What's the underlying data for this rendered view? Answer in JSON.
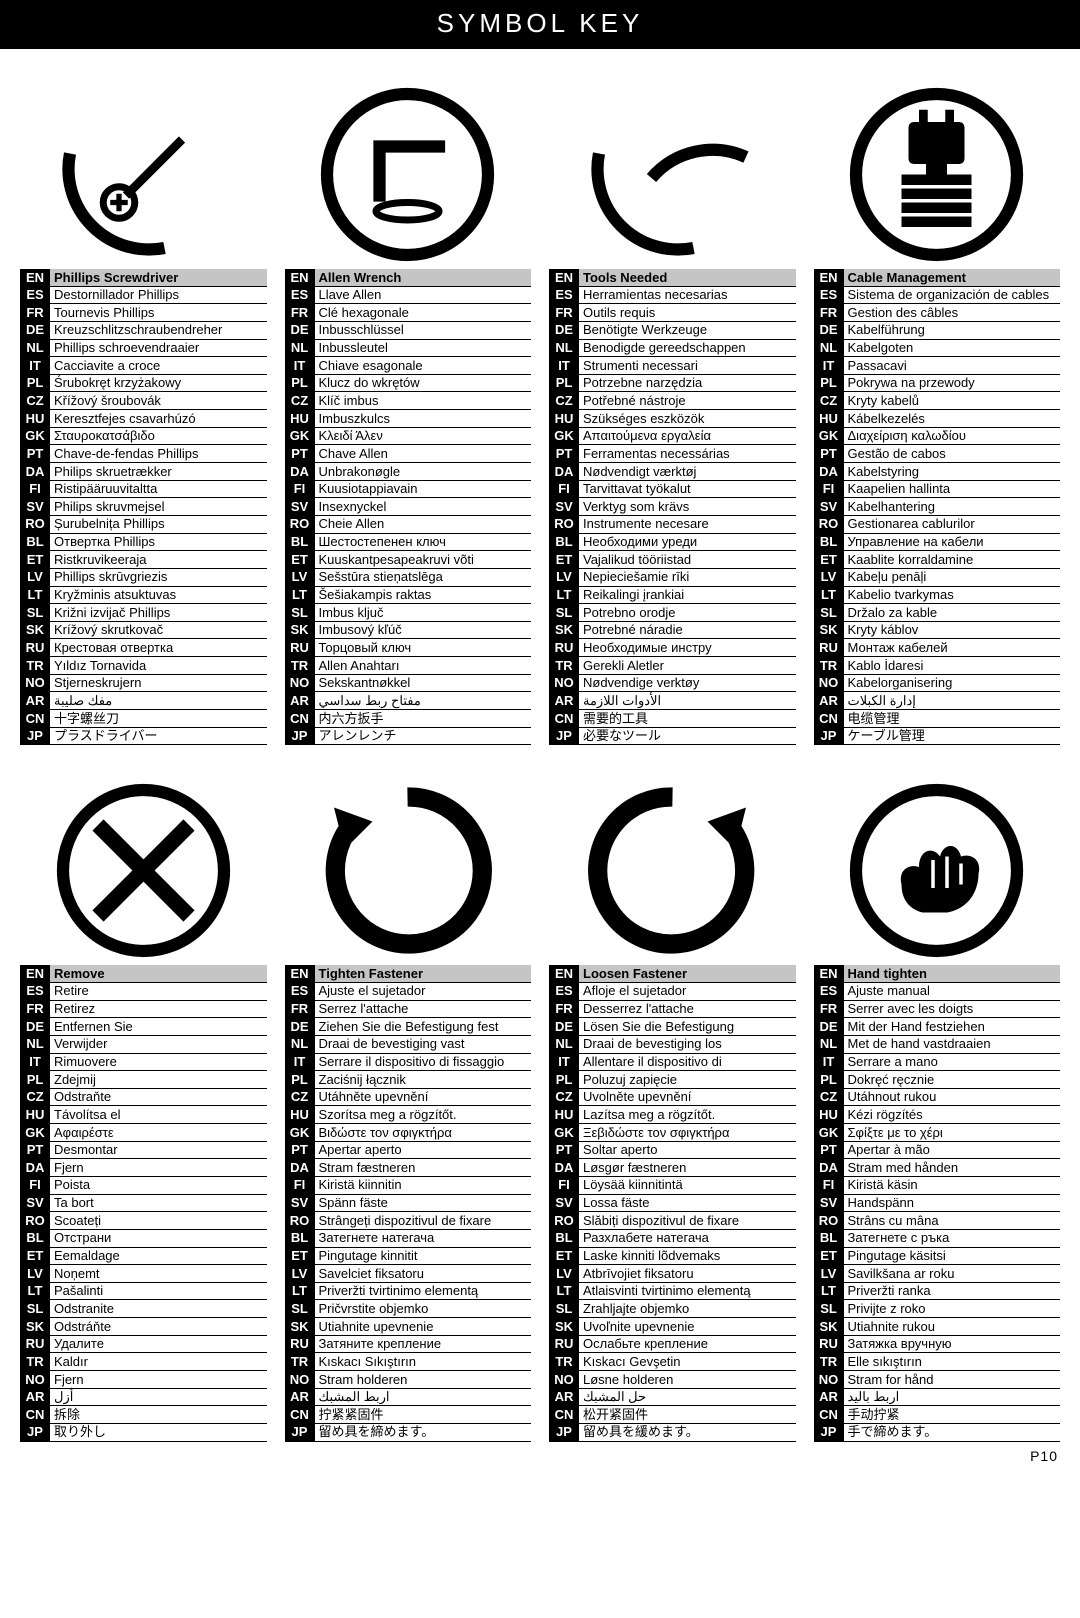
{
  "title": "SYMBOL KEY",
  "pagenum": "P10",
  "lang_codes": [
    "EN",
    "ES",
    "FR",
    "DE",
    "NL",
    "IT",
    "PL",
    "CZ",
    "HU",
    "GK",
    "PT",
    "DA",
    "FI",
    "SV",
    "RO",
    "BL",
    "ET",
    "LV",
    "LT",
    "SL",
    "SK",
    "RU",
    "TR",
    "NO",
    "AR",
    "CN",
    "JP"
  ],
  "row1": {
    "blocks": [
      {
        "icon": "phillips",
        "labels": [
          "Phillips Screwdriver",
          "Destornillador Phillips",
          "Tournevis Phillips",
          "Kreuzschlitzschraubendreher",
          "Phillips schroevendraaier",
          "Cacciavite a croce",
          "Śrubokręt krzyżakowy",
          "Křížový šroubovák",
          "Keresztfejes csavarhúzó",
          "Σταυροκατσάβιδο",
          "Chave-de-fendas Phillips",
          "Philips skruetrækker",
          "Ristipääruuvitaltta",
          "Philips skruvmejsel",
          "Șurubelnița Phillips",
          "Отвертка Phillips",
          "Ristkruvikeeraja",
          "Phillips skrūvgriezis",
          "Kryžminis atsuktuvas",
          "Križni izvijač Phillips",
          "Krížový skrutkovač",
          "Крестовая отвертка",
          "Yıldız Tornavida",
          "Stjerneskrujern",
          "مفك صليبة",
          "十字螺丝刀",
          "プラスドライバー"
        ]
      },
      {
        "icon": "allen",
        "labels": [
          "Allen Wrench",
          "Llave Allen",
          "Clé hexagonale",
          "Inbusschlüssel",
          "Inbussleutel",
          "Chiave esagonale",
          "Klucz do wkrętów",
          "Klíč imbus",
          "Imbuszkulcs",
          "Κλειδί Άλεν",
          "Chave Allen",
          "Unbrakonøgle",
          "Kuusiotappiavain",
          "Insexnyckel",
          "Cheie Allen",
          "Шестостепенен ключ",
          "Kuuskantpesapeakruvi võti",
          "Sešstūra stieņatslēga",
          "Šešiakampis raktas",
          "Imbus ključ",
          "Imbusový kľúč",
          "Торцовый ключ",
          "Allen Anahtarı",
          "Sekskantnøkkel",
          "مفتاح ربط سداسي",
          "内六方扳手",
          "アレンレンチ"
        ]
      },
      {
        "icon": "tools",
        "labels": [
          "Tools Needed",
          "Herramientas necesarias",
          "Outils requis",
          "Benötigte Werkzeuge",
          "Benodigde gereedschappen",
          "Strumenti necessari",
          "Potrzebne narzędzia",
          "Potřebné nástroje",
          "Szükséges eszközök",
          "Απαιτούμενα εργαλεία",
          "Ferramentas necessárias",
          "Nødvendigt værktøj",
          "Tarvittavat työkalut",
          "Verktyg som krävs",
          "Instrumente necesare",
          "Необходими уреди",
          "Vajalikud tööriistad",
          "Nepieciešamie rīki",
          "Reikalingi įrankiai",
          "Potrebno orodje",
          "Potrebné náradie",
          "Необходимые инстру",
          "Gerekli Aletler",
          "Nødvendige verktøy",
          "الأدوات اللازمة",
          "需要的工具",
          "必要なツール"
        ]
      },
      {
        "icon": "plug",
        "labels": [
          "Cable Management",
          "Sistema de organización de cables",
          "Gestion des câbles",
          "Kabelführung",
          "Kabelgoten",
          "Passacavi",
          "Pokrywa na przewody",
          "Kryty kabelů",
          "Kábelkezelés",
          "Διαχείριση καλωδίου",
          "Gestão de cabos",
          "Kabelstyring",
          "Kaapelien hallinta",
          "Kabelhantering",
          "Gestionarea cablurilor",
          "Управление на кабели",
          "Kaablite korraldamine",
          "Kabeļu penāļi",
          "Kabelio tvarkymas",
          "Držalo za kable",
          "Kryty káblov",
          "Монтаж кабелей",
          "Kablo İdaresi",
          "Kabelorganisering",
          "إدارة الكبلات",
          "电缆管理",
          "ケーブル管理"
        ]
      }
    ]
  },
  "row2": {
    "blocks": [
      {
        "icon": "remove",
        "labels": [
          "Remove",
          "Retire",
          "Retirez",
          "Entfernen Sie",
          "Verwijder",
          "Rimuovere",
          "Zdejmij",
          "Odstraňte",
          "Távolítsa el",
          "Αφαιρέστε",
          "Desmontar",
          "Fjern",
          "Poista",
          "Ta bort",
          "Scoateți",
          "Отстрани",
          "Eemaldage",
          "Noņemt",
          "Pašalinti",
          "Odstranite",
          "Odstráňte",
          "Удалите",
          "Kaldır",
          "Fjern",
          "أزل",
          "拆除",
          "取り外し"
        ]
      },
      {
        "icon": "cw",
        "labels": [
          "Tighten Fastener",
          "Ajuste el sujetador",
          "Serrez l'attache",
          "Ziehen Sie die Befestigung fest",
          "Draai de bevestiging vast",
          "Serrare il dispositivo di fissaggio",
          "Zaciśnij łącznik",
          "Utáhněte upevnění",
          "Szorítsa meg a rögzítőt.",
          "Βιδώστε τον σφιγκτήρα",
          "Apertar aperto",
          "Stram fæstneren",
          "Kiristä kiinnitin",
          "Spänn fäste",
          "Strângeți dispozitivul de fixare",
          "Затегнете натегача",
          "Pingutage kinnitit",
          "Savelciet fiksatoru",
          "Priveržti tvirtinimo elementą",
          "Pričvrstite objemko",
          "Utiahnite upevnenie",
          "Затяните крепление",
          "Kıskacı Sıkıştırın",
          "Stram holderen",
          "اربط المشبك",
          "拧紧紧固件",
          "留め具を締めます。"
        ]
      },
      {
        "icon": "ccw",
        "labels": [
          "Loosen Fastener",
          "Afloje el sujetador",
          "Desserrez l'attache",
          "Lösen Sie die Befestigung",
          "Draai de bevestiging los",
          "Allentare il dispositivo di",
          "Poluzuj zapięcie",
          "Uvolněte upevnění",
          "Lazítsa meg a rögzítőt.",
          "Ξεβιδώστε τον σφιγκτήρα",
          "Soltar aperto",
          "Løsgør fæstneren",
          "Löysää kiinnitintä",
          "Lossa fäste",
          "Slăbiți dispozitivul de fixare",
          "Разхлабете натегача",
          "Laske kinniti lõdvemaks",
          "Atbrīvojiet fiksatoru",
          "Atlaisvinti tvirtinimo elementą",
          "Zrahljajte objemko",
          "Uvoľnite upevnenie",
          "Ослабьте крепление",
          "Kıskacı Gevşetin",
          "Løsne holderen",
          "حل المشبك",
          "松开紧固件",
          "留め具を緩めます。"
        ]
      },
      {
        "icon": "hand",
        "labels": [
          "Hand tighten",
          "Ajuste manual",
          "Serrer avec les doigts",
          "Mit der Hand festziehen",
          "Met de hand vastdraaien",
          "Serrare a mano",
          "Dokręć ręcznie",
          "Utáhnout rukou",
          "Kézi rögzítés",
          "Σφίξτε με το χέρι",
          "Apertar à mão",
          "Stram med hånden",
          "Kiristä käsin",
          "Handspänn",
          "Strâns cu mâna",
          "Затегнете с ръка",
          "Pingutage käsitsi",
          "Savilkšana ar roku",
          "Priveržti ranka",
          "Privijte z roko",
          "Utiahnite rukou",
          "Затяжка вручную",
          "Elle sıkıştırın",
          "Stram for hånd",
          "اربط باليد",
          "手动拧紧",
          "手で締めます。"
        ]
      }
    ]
  },
  "colors": {
    "black": "#000000",
    "white": "#ffffff",
    "header_gray": "#c5c5c5"
  }
}
